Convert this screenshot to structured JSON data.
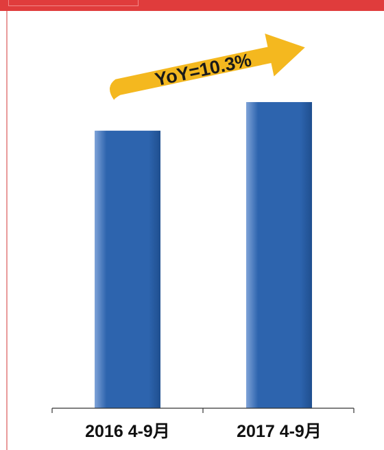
{
  "chart_data": {
    "type": "bar",
    "categories": [
      "2016 4-9月",
      "2017 4-9月"
    ],
    "values": [
      100,
      110.3
    ],
    "title": "",
    "xlabel": "",
    "ylabel": "",
    "ylim": [
      0,
      115
    ],
    "grid": false,
    "legend": "none",
    "annotation": "YoY=10.3%"
  },
  "colors": {
    "bar": "#2d64ae",
    "bar_light": "#7fa3d8",
    "bar_dark": "#1f4f8f",
    "arrow": "#f4b81f",
    "accent": "#e03c3c"
  }
}
